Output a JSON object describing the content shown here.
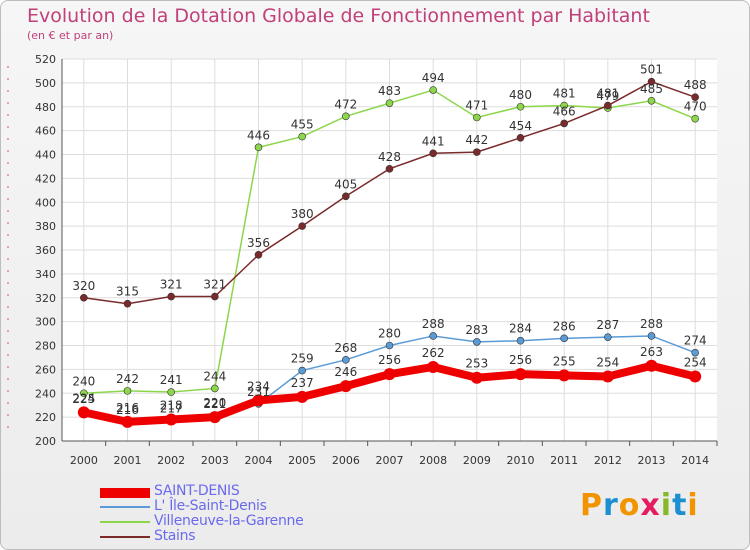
{
  "chart_data": {
    "type": "line",
    "title": "Evolution de la Dotation Globale de Fonctionnement par Habitant",
    "subtitle": "(en € et par an)",
    "xlabel": "",
    "ylabel": "",
    "ylim": [
      200,
      520
    ],
    "yticks": [
      200,
      220,
      240,
      260,
      280,
      300,
      320,
      340,
      360,
      380,
      400,
      420,
      440,
      460,
      480,
      500,
      520
    ],
    "categories": [
      "2000",
      "2001",
      "2002",
      "2003",
      "2004",
      "2005",
      "2006",
      "2007",
      "2008",
      "2009",
      "2010",
      "2011",
      "2012",
      "2013",
      "2014"
    ],
    "grid": true,
    "series": [
      {
        "name": "SAINT-DENIS",
        "color": "#ee0000",
        "values": [
          224,
          216,
          218,
          220,
          234,
          237,
          246,
          256,
          262,
          253,
          256,
          255,
          254,
          263,
          254
        ],
        "labels": [
          "224",
          "216",
          "218",
          "220",
          "234",
          "237",
          "246",
          "256",
          "262",
          "253",
          "256",
          "255",
          "254",
          "263",
          "254"
        ]
      },
      {
        "name": "L' Île-Saint-Denis",
        "color": "#5b9bd5",
        "values": [
          225,
          216,
          217,
          221,
          231,
          259,
          268,
          280,
          288,
          283,
          284,
          286,
          287,
          288,
          274
        ],
        "labels": [
          "225",
          "216",
          "217",
          "221",
          "231",
          "259",
          "268",
          "280",
          "288",
          "283",
          "284",
          "286",
          "287",
          "288",
          "274"
        ]
      },
      {
        "name": "Villeneuve-la-Garenne",
        "color": "#8cd64b",
        "values": [
          240,
          242,
          241,
          244,
          446,
          455,
          472,
          483,
          494,
          471,
          480,
          481,
          479,
          485,
          470
        ],
        "labels": [
          "240",
          "242",
          "241",
          "244",
          "446",
          "455",
          "472",
          "483",
          "494",
          "471",
          "480",
          "481",
          "479",
          "485",
          "470"
        ]
      },
      {
        "name": "Stains",
        "color": "#7a2a2a",
        "values": [
          320,
          315,
          321,
          321,
          356,
          380,
          405,
          428,
          441,
          442,
          454,
          466,
          481,
          501,
          488
        ],
        "labels": [
          "320",
          "315",
          "321",
          "321",
          "356",
          "380",
          "405",
          "428",
          "441",
          "442",
          "454",
          "466",
          "481",
          "501",
          "488"
        ]
      }
    ],
    "legend_position": "bottom-left"
  },
  "branding": {
    "text": "Proxiti",
    "colors": [
      "#f29400",
      "#1c8fd0",
      "#f29400",
      "#e61c61",
      "#88b82a",
      "#1c8fd0",
      "#f29400"
    ]
  }
}
